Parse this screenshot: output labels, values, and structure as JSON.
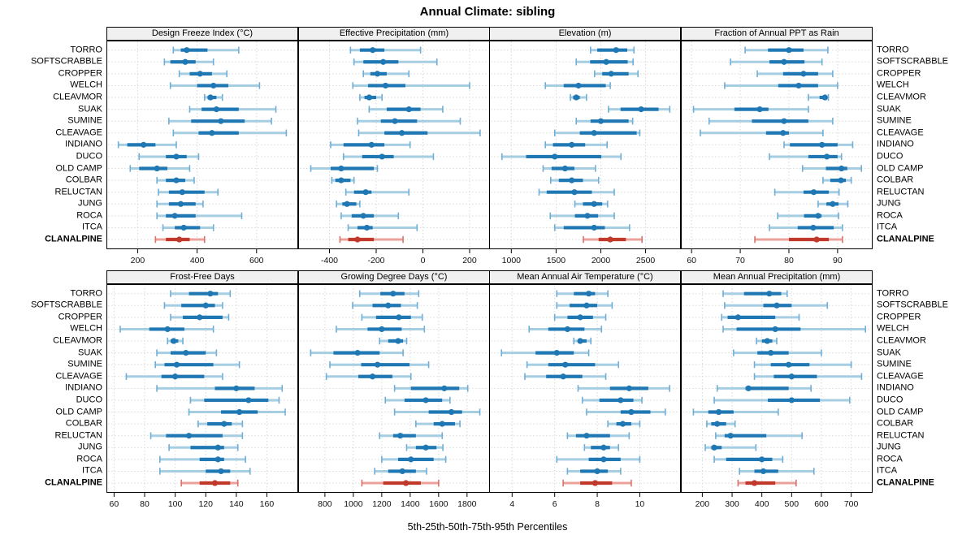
{
  "title": "Annual Climate: sibling",
  "caption": "5th-25th-50th-75th-95th Percentiles",
  "colors": {
    "blue_dark": "#1F78B4",
    "blue_light": "#A6CEE3",
    "blue_mid": "#6FAED6",
    "red_dark": "#C0392B",
    "red_light": "#EBA09A",
    "red_mid": "#D8736B",
    "grid": "#D9D9D9",
    "header_bg": "#F0F0F0",
    "panel_border": "#000000"
  },
  "chart_data": {
    "type": "dotplot-percentiles",
    "percentile_labels": [
      "5th",
      "25th",
      "50th",
      "75th",
      "95th"
    ],
    "legend_note": "thin band = 5th-95th, thick band = 25th-75th, dot = 50th percentile",
    "highlight_site": "CLANALPINE",
    "sites": [
      "TORRO",
      "SOFTSCRABBLE",
      "CROPPER",
      "WELCH",
      "CLEAVMOR",
      "SUAK",
      "SUMINE",
      "CLEAVAGE",
      "INDIANO",
      "DUCO",
      "OLD CAMP",
      "COLBAR",
      "RELUCTAN",
      "JUNG",
      "ROCA",
      "ITCA",
      "CLANALPINE"
    ],
    "panels": [
      {
        "title": "Design Freeze Index (°C)",
        "ticks": [
          200,
          400,
          600,
          800
        ],
        "domain": [
          95,
          740
        ],
        "values": [
          [
            320,
            345,
            365,
            435,
            540
          ],
          [
            290,
            310,
            360,
            395,
            455
          ],
          [
            340,
            375,
            410,
            450,
            500
          ],
          [
            310,
            400,
            455,
            505,
            610
          ],
          [
            425,
            435,
            445,
            465,
            485
          ],
          [
            375,
            415,
            465,
            540,
            665
          ],
          [
            305,
            380,
            480,
            560,
            650
          ],
          [
            320,
            405,
            450,
            540,
            700
          ],
          [
            135,
            165,
            220,
            260,
            330
          ],
          [
            205,
            295,
            330,
            365,
            405
          ],
          [
            175,
            205,
            265,
            300,
            375
          ],
          [
            265,
            295,
            330,
            360,
            390
          ],
          [
            270,
            305,
            350,
            425,
            470
          ],
          [
            265,
            305,
            345,
            395,
            420
          ],
          [
            265,
            295,
            325,
            395,
            550
          ],
          [
            285,
            325,
            355,
            410,
            455
          ],
          [
            260,
            295,
            340,
            375,
            425
          ]
        ]
      },
      {
        "title": "Effective Precipitation (mm)",
        "ticks": [
          -400,
          -200,
          0,
          200
        ],
        "domain": [
          -534,
          287
        ],
        "values": [
          [
            -310,
            -270,
            -215,
            -165,
            -10
          ],
          [
            -295,
            -255,
            -170,
            -105,
            60
          ],
          [
            -255,
            -225,
            -195,
            -155,
            -60
          ],
          [
            -300,
            -235,
            -160,
            -75,
            200
          ],
          [
            -270,
            -250,
            -230,
            -200,
            -175
          ],
          [
            -230,
            -155,
            -60,
            -10,
            85
          ],
          [
            -280,
            -180,
            -120,
            -25,
            160
          ],
          [
            -275,
            -165,
            -90,
            20,
            245
          ],
          [
            -395,
            -340,
            -220,
            -165,
            -55
          ],
          [
            -340,
            -260,
            -175,
            -125,
            45
          ],
          [
            -480,
            -395,
            -350,
            -210,
            -195
          ],
          [
            -390,
            -375,
            -350,
            -310,
            -295
          ],
          [
            -330,
            -295,
            -245,
            -220,
            -60
          ],
          [
            -370,
            -345,
            -325,
            -285,
            -270
          ],
          [
            -350,
            -305,
            -255,
            -210,
            -105
          ],
          [
            -320,
            -280,
            -240,
            -215,
            -25
          ],
          [
            -355,
            -320,
            -280,
            -210,
            -85
          ]
        ]
      },
      {
        "title": "Elevation (m)",
        "ticks": [
          1000,
          1500,
          2000,
          2500
        ],
        "domain": [
          752,
          2894
        ],
        "values": [
          [
            1885,
            1960,
            2170,
            2295,
            2370
          ],
          [
            1725,
            1880,
            2060,
            2300,
            2360
          ],
          [
            1930,
            2015,
            2115,
            2310,
            2415
          ],
          [
            1380,
            1585,
            1750,
            2055,
            2105
          ],
          [
            1660,
            1690,
            1725,
            1765,
            1840
          ],
          [
            2085,
            2220,
            2450,
            2645,
            2770
          ],
          [
            1725,
            1885,
            2000,
            2310,
            2355
          ],
          [
            1485,
            1765,
            1925,
            2400,
            2435
          ],
          [
            1380,
            1465,
            1675,
            1825,
            2070
          ],
          [
            895,
            1165,
            1485,
            2005,
            2225
          ],
          [
            1355,
            1450,
            1600,
            1705,
            1940
          ],
          [
            1440,
            1530,
            1675,
            1800,
            1975
          ],
          [
            1310,
            1395,
            1705,
            1900,
            2150
          ],
          [
            1710,
            1800,
            1925,
            2015,
            2075
          ],
          [
            1435,
            1710,
            1850,
            1970,
            2150
          ],
          [
            1485,
            1585,
            1925,
            2045,
            2320
          ],
          [
            1805,
            1975,
            2105,
            2280,
            2460
          ]
        ]
      },
      {
        "title": "Fraction of Annual PPT as Rain",
        "ticks": [
          60,
          70,
          80,
          90
        ],
        "domain": [
          57.8,
          97.2
        ],
        "values": [
          [
            71,
            75.7,
            80,
            83,
            88
          ],
          [
            68,
            76,
            79,
            83.2,
            86.8
          ],
          [
            73.5,
            78.8,
            83,
            86,
            89
          ],
          [
            66.8,
            77.8,
            82,
            86,
            90
          ],
          [
            84,
            86.3,
            87.4,
            87.8,
            88.1
          ],
          [
            60.4,
            68.8,
            74,
            75.8,
            84
          ],
          [
            63.6,
            72.4,
            79,
            84,
            89
          ],
          [
            61.8,
            75.3,
            78.8,
            80,
            87
          ],
          [
            79,
            80.2,
            86.8,
            90,
            93.1
          ],
          [
            76,
            84,
            87.8,
            90,
            90.8
          ],
          [
            82.8,
            87.6,
            90.8,
            92,
            94.9
          ],
          [
            87,
            88.5,
            90.7,
            91.7,
            92.8
          ],
          [
            77.1,
            83,
            85.1,
            88.2,
            90.3
          ],
          [
            86,
            87.7,
            89,
            90.2,
            92.1
          ],
          [
            77.7,
            83.1,
            86,
            86.7,
            90.2
          ],
          [
            76,
            81.8,
            85,
            89.2,
            91
          ],
          [
            73,
            80,
            85.7,
            88.2,
            91
          ]
        ]
      },
      {
        "title": "Frost-Free Days",
        "ticks": [
          60,
          80,
          100,
          120,
          140,
          160
        ],
        "domain": [
          55,
          180.5
        ],
        "values": [
          [
            97,
            109,
            123,
            128,
            136
          ],
          [
            93,
            104,
            120,
            126,
            131
          ],
          [
            97,
            105,
            116,
            131,
            135
          ],
          [
            64,
            83,
            95,
            106,
            125
          ],
          [
            95,
            97,
            99,
            102,
            105
          ],
          [
            88,
            97,
            107,
            120,
            127
          ],
          [
            87,
            93,
            101,
            125,
            142
          ],
          [
            68,
            91,
            100,
            119,
            131
          ],
          [
            88,
            126,
            140,
            152,
            170
          ],
          [
            110,
            119,
            148,
            161,
            168
          ],
          [
            109,
            130,
            142,
            154,
            172
          ],
          [
            115,
            121,
            132,
            137,
            144
          ],
          [
            84,
            94,
            109,
            131,
            144
          ],
          [
            96,
            110,
            128,
            132,
            141
          ],
          [
            90,
            116,
            128,
            132,
            146
          ],
          [
            90,
            120,
            130,
            136,
            149
          ],
          [
            104,
            116,
            126,
            136,
            141
          ]
        ]
      },
      {
        "title": "Growing Degree Days (°C)",
        "ticks": [
          800,
          1000,
          1200,
          1400,
          1600,
          1800
        ],
        "domain": [
          612,
          1961
        ],
        "values": [
          [
            1045,
            1190,
            1280,
            1360,
            1460
          ],
          [
            995,
            1135,
            1245,
            1335,
            1450
          ],
          [
            1060,
            1160,
            1320,
            1405,
            1485
          ],
          [
            880,
            1100,
            1200,
            1340,
            1500
          ],
          [
            1185,
            1245,
            1315,
            1350,
            1375
          ],
          [
            700,
            860,
            1030,
            1185,
            1350
          ],
          [
            835,
            1055,
            1170,
            1395,
            1530
          ],
          [
            810,
            1035,
            1135,
            1275,
            1405
          ],
          [
            1290,
            1405,
            1640,
            1745,
            1805
          ],
          [
            1225,
            1360,
            1510,
            1625,
            1680
          ],
          [
            1290,
            1530,
            1690,
            1765,
            1890
          ],
          [
            1440,
            1565,
            1625,
            1715,
            1750
          ],
          [
            1185,
            1280,
            1330,
            1440,
            1625
          ],
          [
            1375,
            1440,
            1510,
            1585,
            1630
          ],
          [
            1200,
            1315,
            1405,
            1565,
            1650
          ],
          [
            1150,
            1245,
            1345,
            1440,
            1515
          ],
          [
            1060,
            1210,
            1370,
            1475,
            1600
          ]
        ]
      },
      {
        "title": "Mean Annual Air Temperature (°C)",
        "ticks": [
          4,
          6,
          8,
          10
        ],
        "domain": [
          2.92,
          11.93
        ],
        "values": [
          [
            6.1,
            6.9,
            7.6,
            7.9,
            8.5
          ],
          [
            6.1,
            6.7,
            7.5,
            8,
            8.7
          ],
          [
            6,
            6.6,
            7.2,
            7.8,
            8.4
          ],
          [
            4.8,
            5.7,
            6.6,
            7.4,
            8.2
          ],
          [
            6.9,
            7.1,
            7.2,
            7.5,
            7.7
          ],
          [
            3.5,
            5.1,
            6.1,
            6.9,
            7.6
          ],
          [
            4.7,
            5.7,
            6.5,
            7.9,
            9
          ],
          [
            4.6,
            5.6,
            6.4,
            7.3,
            8.4
          ],
          [
            7.1,
            8.6,
            9.5,
            10.4,
            11.4
          ],
          [
            7.3,
            8.1,
            9.1,
            9.7,
            10.1
          ],
          [
            7.5,
            9.1,
            9.6,
            10.5,
            11.2
          ],
          [
            8.5,
            8.9,
            9.2,
            9.6,
            10
          ],
          [
            6.6,
            7,
            7.5,
            8.6,
            9.5
          ],
          [
            7.4,
            7.7,
            8.3,
            8.6,
            9
          ],
          [
            6.1,
            7.6,
            8.3,
            9.1,
            10
          ],
          [
            6.6,
            7.2,
            8,
            8.5,
            9.1
          ],
          [
            6.4,
            7.2,
            7.9,
            8.7,
            9.6
          ]
        ]
      },
      {
        "title": "Mean Annual Precipitation (mm)",
        "ticks": [
          200,
          300,
          400,
          500,
          600,
          700
        ],
        "domain": [
          128,
          772
        ],
        "values": [
          [
            270,
            340,
            425,
            465,
            485
          ],
          [
            275,
            405,
            450,
            500,
            620
          ],
          [
            265,
            285,
            320,
            445,
            525
          ],
          [
            270,
            315,
            445,
            530,
            748
          ],
          [
            382,
            400,
            418,
            435,
            450
          ],
          [
            305,
            385,
            430,
            490,
            600
          ],
          [
            375,
            430,
            490,
            560,
            700
          ],
          [
            375,
            440,
            500,
            585,
            735
          ],
          [
            250,
            345,
            355,
            490,
            565
          ],
          [
            240,
            420,
            500,
            595,
            695
          ],
          [
            170,
            220,
            255,
            305,
            455
          ],
          [
            215,
            230,
            250,
            280,
            310
          ],
          [
            245,
            275,
            295,
            415,
            535
          ],
          [
            210,
            230,
            240,
            265,
            380
          ],
          [
            240,
            280,
            400,
            435,
            470
          ],
          [
            325,
            375,
            405,
            455,
            575
          ],
          [
            320,
            345,
            375,
            445,
            515
          ]
        ]
      }
    ]
  }
}
